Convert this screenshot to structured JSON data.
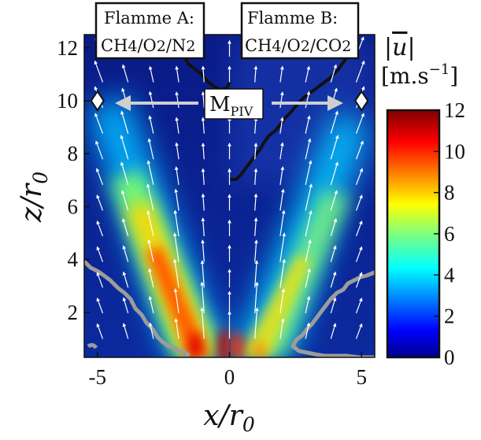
{
  "chart_data": {
    "type": "heatmap",
    "xlabel": "x/r₀",
    "ylabel": "z/r₀",
    "x_ticks": [
      "-5",
      "0",
      "5"
    ],
    "x_tick_values": [
      -5,
      0,
      5
    ],
    "y_ticks": [
      "2",
      "4",
      "6",
      "8",
      "10",
      "12"
    ],
    "y_tick_values": [
      2,
      4,
      6,
      8,
      10,
      12
    ],
    "xlim": [
      -5.5,
      5.5
    ],
    "ylim": [
      0.3,
      12.5
    ],
    "colorbar": {
      "label_line1": "|u̅|",
      "label_line2": "[m.s⁻¹]",
      "ticks": [
        "0",
        "2",
        "4",
        "6",
        "8",
        "10",
        "12"
      ],
      "tick_values": [
        0,
        2,
        4,
        6,
        8,
        10,
        12
      ],
      "range": [
        0,
        12
      ],
      "colormap": "jet"
    },
    "panels": [
      {
        "line1": "Flamme A:",
        "line2": "CH4/O2/N2",
        "side": "left"
      },
      {
        "line1": "Flamme B:",
        "line2": "CH4/O2/CO2",
        "side": "right"
      }
    ],
    "marker": {
      "label": "MPIV",
      "points": [
        [
          -5,
          10
        ],
        [
          5,
          10
        ]
      ]
    },
    "jet_peaks": [
      {
        "name": "Flamme A",
        "side": "left",
        "approx_peak_velocity": 12
      },
      {
        "name": "Flamme B",
        "side": "right",
        "approx_peak_velocity": 10
      }
    ]
  },
  "colors": {
    "contour_gray": "#9c9c9c",
    "contour_black": "#111111",
    "background_field": "#0a1f8f",
    "arrow": "#ffffff"
  }
}
